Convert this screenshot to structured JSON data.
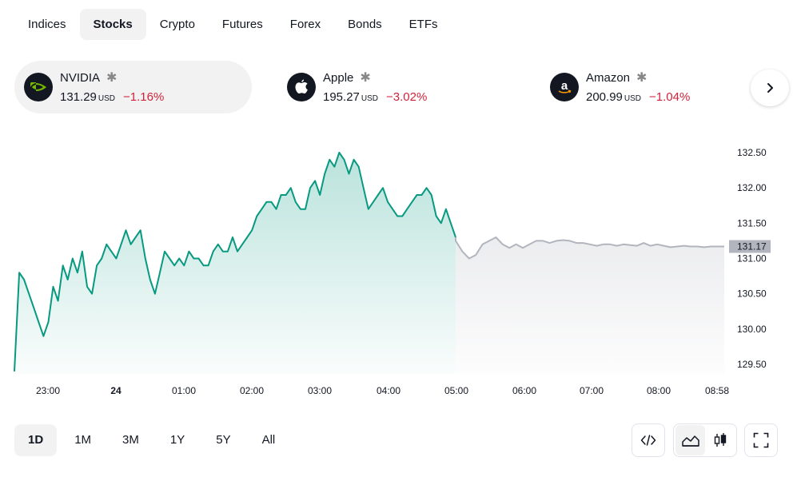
{
  "tabs": [
    {
      "label": "Indices",
      "active": false
    },
    {
      "label": "Stocks",
      "active": true
    },
    {
      "label": "Crypto",
      "active": false
    },
    {
      "label": "Futures",
      "active": false
    },
    {
      "label": "Forex",
      "active": false
    },
    {
      "label": "Bonds",
      "active": false
    },
    {
      "label": "ETFs",
      "active": false
    }
  ],
  "tickers": [
    {
      "name": "NVIDIA",
      "price": "131.29",
      "currency": "USD",
      "change": "−1.16%",
      "icon": "nvidia-logo",
      "active": true
    },
    {
      "name": "Apple",
      "price": "195.27",
      "currency": "USD",
      "change": "−3.02%",
      "icon": "apple-logo",
      "active": false
    },
    {
      "name": "Amazon",
      "price": "200.99",
      "currency": "USD",
      "change": "−1.04%",
      "icon": "amazon-logo",
      "active": false
    }
  ],
  "star_glyph": "✱",
  "colors": {
    "up": "#089981",
    "down": "#d1233b",
    "extended": "#b2b5be",
    "last_price_badge": "#b2b5be"
  },
  "chart_data": {
    "type": "area",
    "y_ticks": [
      "132.50",
      "132.00",
      "131.50",
      "131.00",
      "130.50",
      "130.00",
      "129.50"
    ],
    "y_tick_values": [
      132.5,
      132.0,
      131.5,
      131.0,
      130.5,
      130.0,
      129.5
    ],
    "x_ticks": [
      "23:00",
      "24",
      "01:00",
      "02:00",
      "03:00",
      "04:00",
      "05:00",
      "06:00",
      "07:00",
      "08:00",
      "08:58"
    ],
    "ylim": [
      129.35,
      132.75
    ],
    "last_price": "131.17",
    "regular_session": [
      129.4,
      130.8,
      130.7,
      130.5,
      130.3,
      130.1,
      129.9,
      130.1,
      130.6,
      130.4,
      130.9,
      130.7,
      131.0,
      130.8,
      131.1,
      130.6,
      130.5,
      130.9,
      131.0,
      131.2,
      131.1,
      131.0,
      131.2,
      131.4,
      131.2,
      131.3,
      131.4,
      131.0,
      130.7,
      130.5,
      130.8,
      131.1,
      131.0,
      130.9,
      131.0,
      130.9,
      131.1,
      131.0,
      131.0,
      130.9,
      130.9,
      131.1,
      131.2,
      131.1,
      131.1,
      131.3,
      131.1,
      131.2,
      131.3,
      131.4,
      131.6,
      131.7,
      131.8,
      131.8,
      131.7,
      131.9,
      131.9,
      132.0,
      131.8,
      131.7,
      131.7,
      132.0,
      132.1,
      131.9,
      132.2,
      132.4,
      132.3,
      132.5,
      132.4,
      132.2,
      132.4,
      132.3,
      132.0,
      131.7,
      131.8,
      131.9,
      132.0,
      131.8,
      131.7,
      131.6,
      131.6,
      131.7,
      131.8,
      131.9,
      131.9,
      132.0,
      131.9,
      131.6,
      131.5,
      131.7,
      131.5,
      131.3
    ],
    "extended_session": [
      131.25,
      131.1,
      131.0,
      131.05,
      131.2,
      131.25,
      131.3,
      131.2,
      131.15,
      131.2,
      131.15,
      131.2,
      131.25,
      131.25,
      131.22,
      131.25,
      131.26,
      131.25,
      131.22,
      131.22,
      131.2,
      131.18,
      131.2,
      131.2,
      131.18,
      131.2,
      131.19,
      131.18,
      131.22,
      131.18,
      131.2,
      131.18,
      131.16,
      131.17,
      131.18,
      131.17,
      131.17,
      131.16,
      131.17,
      131.17,
      131.17
    ]
  },
  "ranges": [
    {
      "label": "1D",
      "active": true
    },
    {
      "label": "1M",
      "active": false
    },
    {
      "label": "3M",
      "active": false
    },
    {
      "label": "1Y",
      "active": false
    },
    {
      "label": "5Y",
      "active": false
    },
    {
      "label": "All",
      "active": false
    }
  ]
}
